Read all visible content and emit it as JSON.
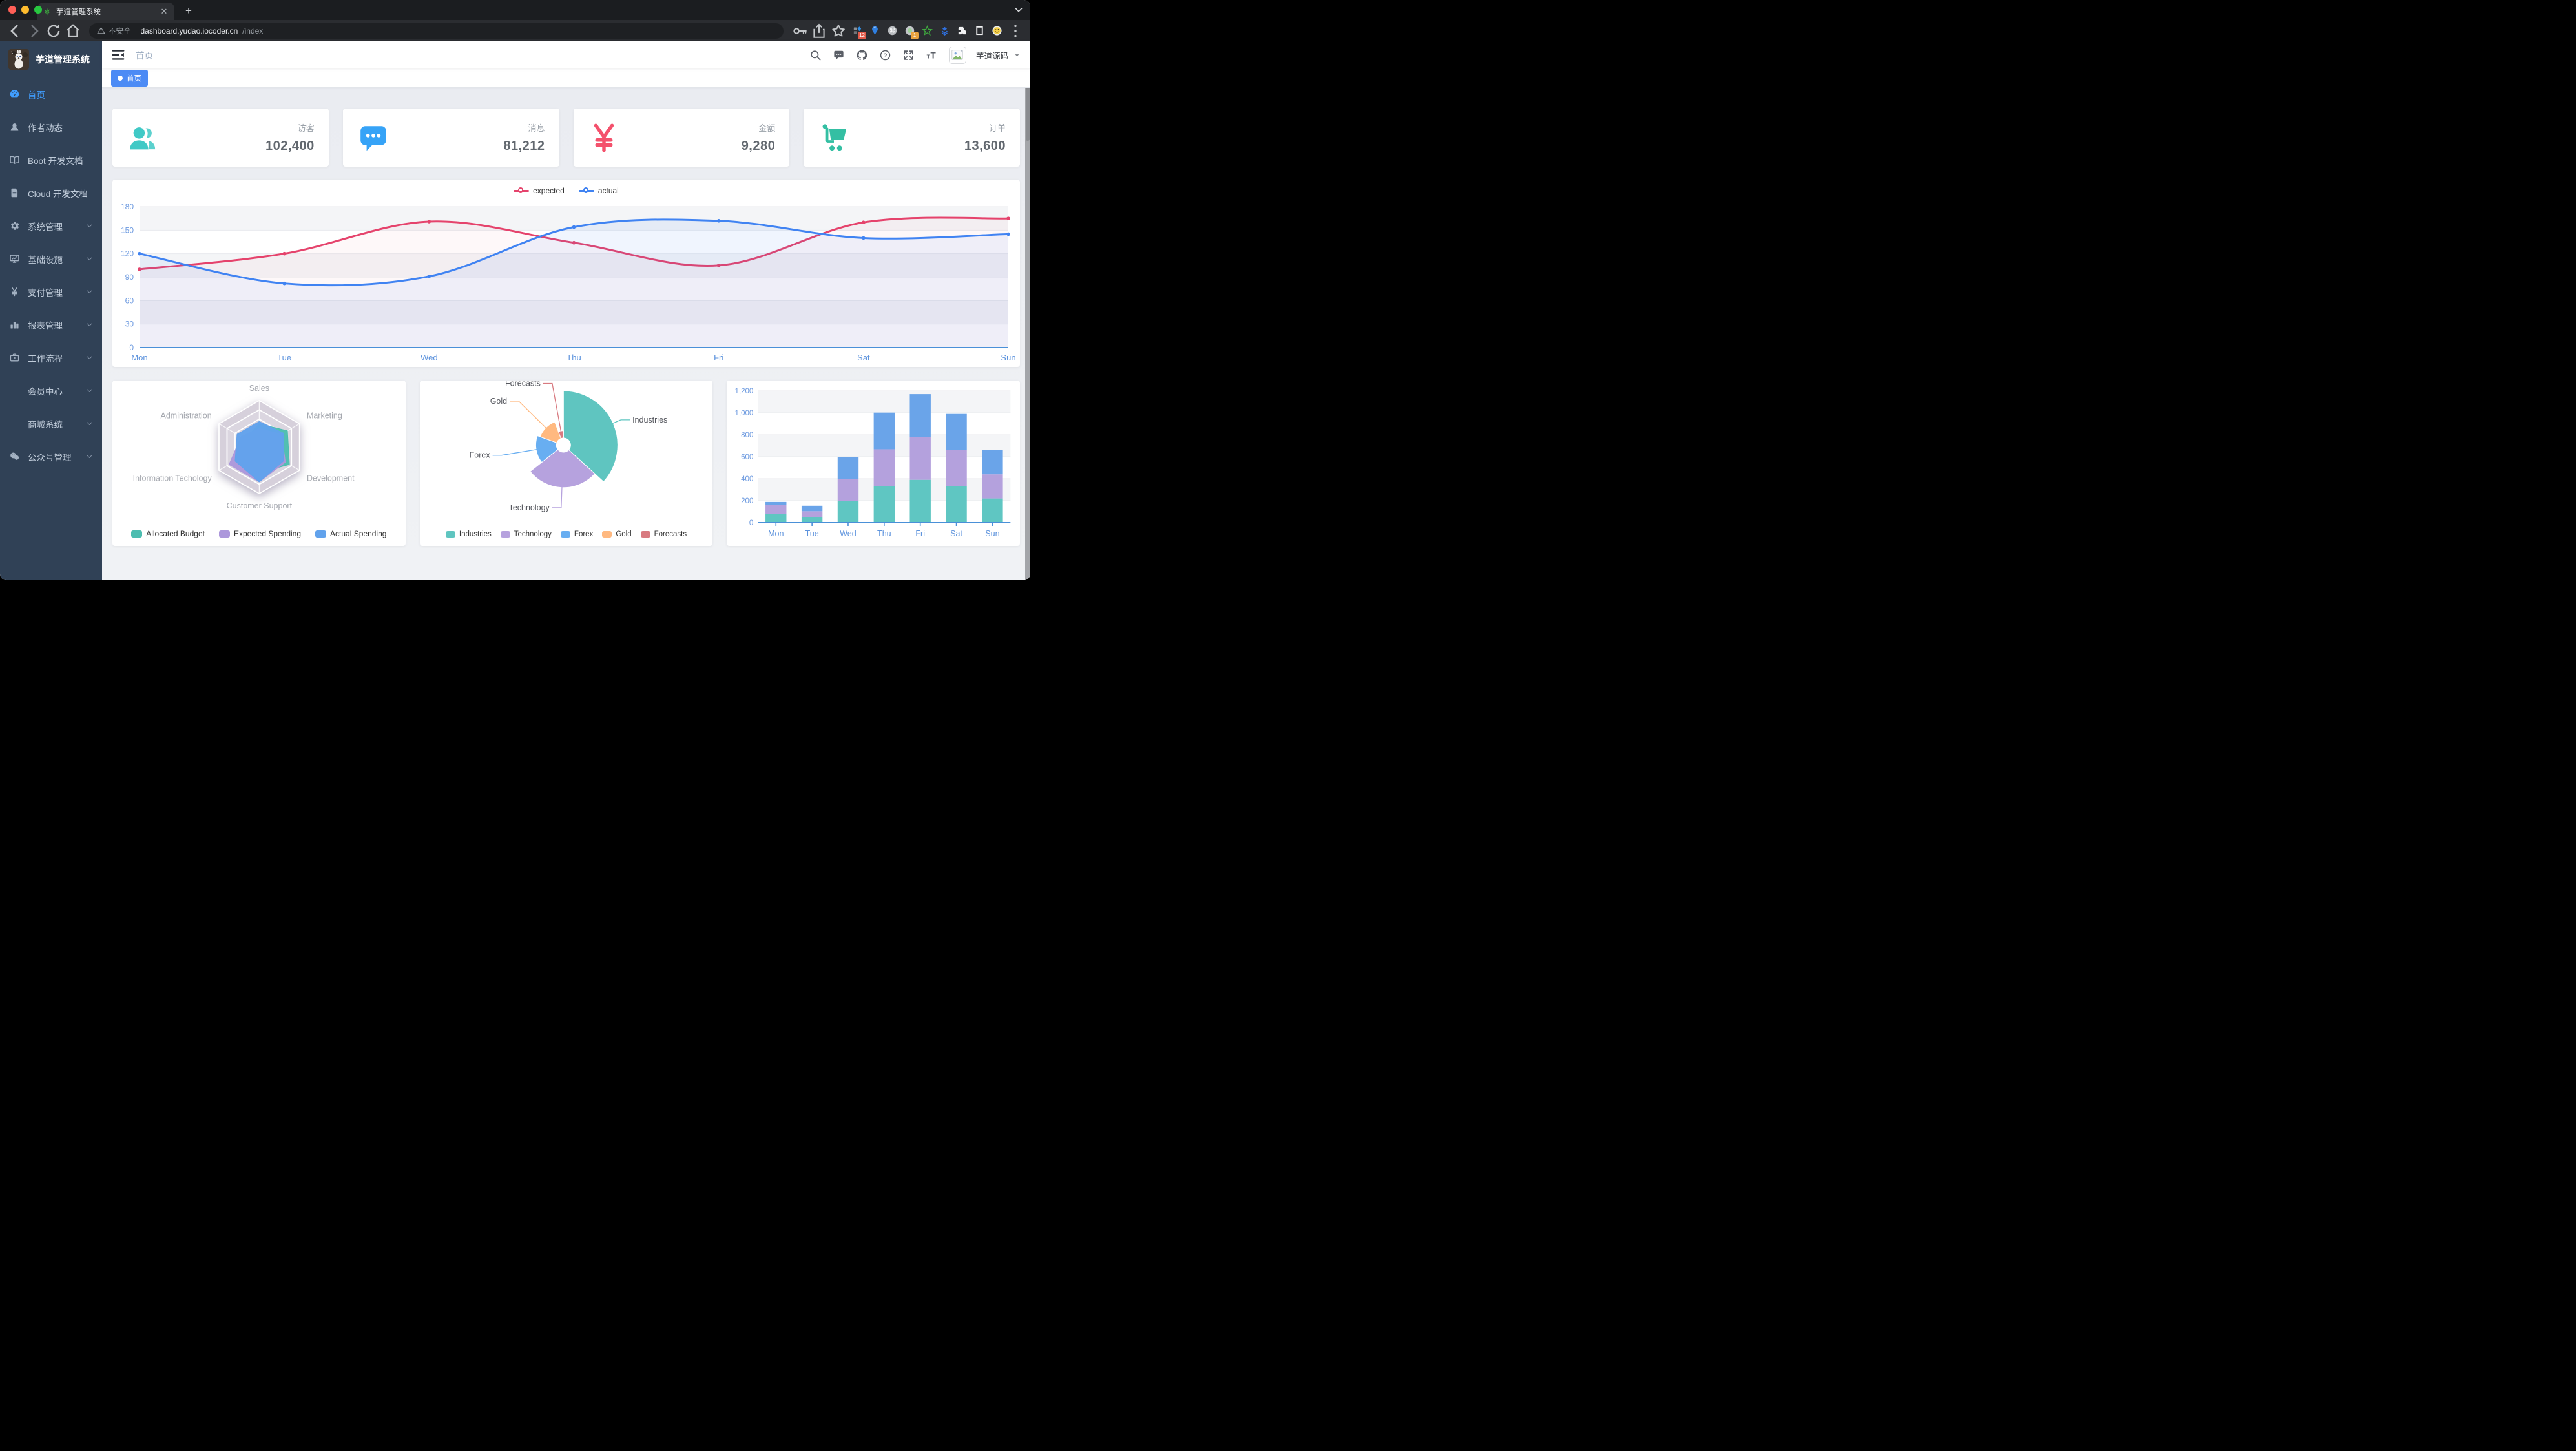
{
  "browser": {
    "tab_title": "芋道管理系统",
    "security_label": "不安全",
    "url_host": "dashboard.yudao.iocoder.cn",
    "url_path": "/index",
    "extensions": [
      {
        "icon": "grid-ext-icon",
        "badge": "12",
        "badge_color": "#e25a49"
      },
      {
        "icon": "balloon-ext-icon"
      },
      {
        "icon": "command-ext-icon"
      },
      {
        "icon": "dot-ext-icon",
        "badge": "1",
        "badge_color": "#e8a33d"
      },
      {
        "icon": "star-ext-icon"
      },
      {
        "icon": "chevrons-ext-icon"
      },
      {
        "icon": "puzzle-ext-icon"
      },
      {
        "icon": "frame-ext-icon"
      },
      {
        "icon": "smiley-ext-icon"
      }
    ]
  },
  "sidebar": {
    "logo_title": "芋道管理系统",
    "items": [
      {
        "label": "首页",
        "icon": "dashboard-icon",
        "active": true,
        "arrow": false
      },
      {
        "label": "作者动态",
        "icon": "author-icon",
        "arrow": false
      },
      {
        "label": "Boot 开发文档",
        "icon": "book-icon",
        "arrow": false
      },
      {
        "label": "Cloud 开发文档",
        "icon": "document-icon",
        "arrow": false
      },
      {
        "label": "系统管理",
        "icon": "gear-icon",
        "arrow": true
      },
      {
        "label": "基础设施",
        "icon": "monitor-icon",
        "arrow": true
      },
      {
        "label": "支付管理",
        "icon": "yen-icon",
        "arrow": true
      },
      {
        "label": "报表管理",
        "icon": "bar-chart-icon",
        "arrow": true
      },
      {
        "label": "工作流程",
        "icon": "briefcase-icon",
        "arrow": true
      },
      {
        "label": "会员中心",
        "icon": "",
        "arrow": true
      },
      {
        "label": "商城系统",
        "icon": "",
        "arrow": true
      },
      {
        "label": "公众号管理",
        "icon": "wechat-icon",
        "arrow": true
      }
    ]
  },
  "navbar": {
    "breadcrumb": "首页",
    "icons": [
      "search-icon",
      "chat-icon",
      "github-icon",
      "question-icon",
      "fullscreen-icon",
      "font-size-icon"
    ],
    "username": "芋道源码"
  },
  "tags": [
    {
      "label": "首页",
      "active": true
    }
  ],
  "stats": [
    {
      "title": "访客",
      "value": "102,400",
      "icon": "visitors-icon",
      "color": "#40c9c6"
    },
    {
      "title": "消息",
      "value": "81,212",
      "icon": "message-icon",
      "color": "#36a3f7"
    },
    {
      "title": "金额",
      "value": "9,280",
      "icon": "money-icon",
      "color": "#f4516c"
    },
    {
      "title": "订单",
      "value": "13,600",
      "icon": "cart-icon",
      "color": "#34bfa3"
    }
  ],
  "theme": {
    "accent_blue": "#409EFF",
    "sidebar_bg": "#304156",
    "tag_active_bg": "#4C8BF5",
    "content_bg": "#EEF0F4",
    "axis_blue": "#4A90D8",
    "axis_label_blue": "#6E9BE0"
  },
  "chart_data": [
    {
      "type": "line",
      "x": [
        "Mon",
        "Tue",
        "Wed",
        "Thu",
        "Fri",
        "Sat",
        "Sun"
      ],
      "ylim": [
        0,
        180
      ],
      "ytick": 30,
      "grid": true,
      "legend_position": "top",
      "series": [
        {
          "name": "expected",
          "color": "#E5436C",
          "values": [
            100,
            120,
            161,
            134,
            105,
            160,
            165
          ]
        },
        {
          "name": "actual",
          "color": "#4083F2",
          "values": [
            120,
            82,
            91,
            154,
            162,
            140,
            145
          ]
        }
      ]
    },
    {
      "type": "radar",
      "indicators": [
        {
          "name": "Sales",
          "max": 10000
        },
        {
          "name": "Marketing",
          "max": 20000
        },
        {
          "name": "Development",
          "max": 20000
        },
        {
          "name": "Customer Support",
          "max": 20000
        },
        {
          "name": "Information Techology",
          "max": 20000
        },
        {
          "name": "Administration",
          "max": 20000
        }
      ],
      "legend_position": "bottom",
      "series": [
        {
          "name": "Allocated Budget",
          "color": "#4CBDB0",
          "values": [
            5000,
            14000,
            15000,
            11000,
            12000,
            7000
          ]
        },
        {
          "name": "Expected Spending",
          "color": "#AC97DB",
          "values": [
            4000,
            11000,
            13000,
            15000,
            15000,
            9000
          ]
        },
        {
          "name": "Actual Spending",
          "color": "#61A2EC",
          "values": [
            5500,
            12000,
            12000,
            15000,
            12000,
            11000
          ]
        }
      ]
    },
    {
      "type": "pie",
      "rose": true,
      "legend_position": "bottom",
      "items": [
        {
          "name": "Industries",
          "value": 320,
          "color": "#5FC5C0"
        },
        {
          "name": "Technology",
          "value": 240,
          "color": "#B6A2DE"
        },
        {
          "name": "Forex",
          "value": 140,
          "color": "#68AEF1"
        },
        {
          "name": "Gold",
          "value": 120,
          "color": "#FFB980"
        },
        {
          "name": "Forecasts",
          "value": 50,
          "color": "#D87A80"
        }
      ]
    },
    {
      "type": "bar",
      "stacked": true,
      "x": [
        "Mon",
        "Tue",
        "Wed",
        "Thu",
        "Fri",
        "Sat",
        "Sun"
      ],
      "ylim": [
        0,
        1200
      ],
      "ytick": 200,
      "series": [
        {
          "color": "#5FC6C2",
          "values": [
            79,
            52,
            200,
            334,
            390,
            330,
            220
          ]
        },
        {
          "color": "#B4A1DD",
          "values": [
            80,
            52,
            200,
            334,
            390,
            330,
            220
          ]
        },
        {
          "color": "#6AA4E9",
          "values": [
            30,
            50,
            200,
            334,
            390,
            330,
            220
          ]
        }
      ]
    }
  ]
}
